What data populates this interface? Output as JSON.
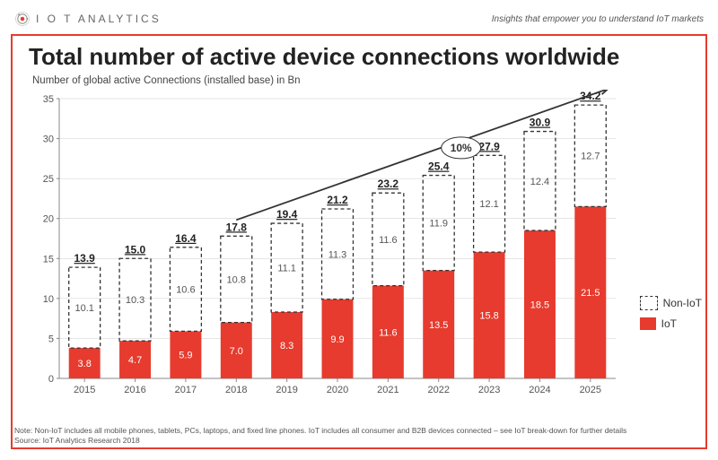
{
  "header": {
    "logo_text": "I O T  ANALYTICS",
    "tagline": "Insights that empower you to understand IoT markets"
  },
  "title": "Total number of active device connections worldwide",
  "subtitle": "Number of global active Connections (installed base) in Bn",
  "chart": {
    "type": "stacked-bar",
    "categories": [
      "2015",
      "2016",
      "2017",
      "2018",
      "2019",
      "2020",
      "2021",
      "2022",
      "2023",
      "2024",
      "2025"
    ],
    "series": {
      "iot": [
        3.8,
        4.7,
        5.9,
        7.0,
        8.3,
        9.9,
        11.6,
        13.5,
        15.8,
        18.5,
        21.5
      ],
      "noniot": [
        10.1,
        10.3,
        10.6,
        10.8,
        11.1,
        11.3,
        11.6,
        11.9,
        12.1,
        12.4,
        12.7
      ],
      "total": [
        13.9,
        15.0,
        16.4,
        17.8,
        19.4,
        21.2,
        23.2,
        25.4,
        27.9,
        30.9,
        34.2
      ]
    },
    "colors": {
      "iot": "#e63b2e",
      "noniot_stroke": "#333333",
      "background": "#ffffff",
      "grid": "#cccccc",
      "axis": "#888888"
    },
    "y_axis": {
      "min": 0,
      "max": 35,
      "tick_step": 5
    },
    "bar_width_ratio": 0.62,
    "growth_label": "10%",
    "arrow": {
      "start_year_idx": 3,
      "end_year_idx": 10
    }
  },
  "legend": {
    "noniot": "Non-IoT",
    "iot": "IoT"
  },
  "note_line1": "Note: Non-IoT includes all mobile phones, tablets, PCs, laptops, and fixed line phones. IoT includes all consumer and B2B devices connected – see IoT break-down for further details",
  "note_line2": "Source: IoT Analytics Research 2018"
}
